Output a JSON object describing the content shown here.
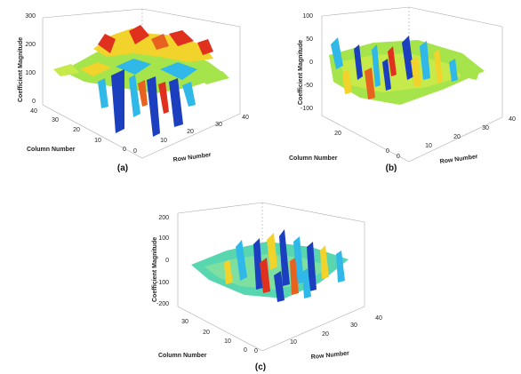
{
  "chart_data": [
    {
      "type": "surface3d",
      "caption": "(a)",
      "zlabel": "Coefficient  Magnitude",
      "xlabel": "Column Number",
      "ylabel": "Row Number",
      "z_ticks": [
        "300",
        "200",
        "100",
        "0"
      ],
      "x_ticks": [
        "40",
        "30",
        "20",
        "10",
        "0"
      ],
      "y_ticks": [
        "0",
        "10",
        "20",
        "30",
        "40"
      ],
      "zlim": [
        0,
        300
      ],
      "xlim": [
        0,
        40
      ],
      "ylim": [
        0,
        40
      ]
    },
    {
      "type": "surface3d",
      "caption": "(b)",
      "zlabel": "Coefficient Magnitude",
      "xlabel": "Column Number",
      "ylabel": "Row Number",
      "z_ticks": [
        "100",
        "50",
        "0",
        "-50",
        "-100"
      ],
      "x_ticks": [
        "20",
        "0"
      ],
      "y_ticks": [
        "0",
        "10",
        "20",
        "30",
        "40"
      ],
      "zlim": [
        -100,
        100
      ],
      "xlim": [
        0,
        40
      ],
      "ylim": [
        0,
        40
      ]
    },
    {
      "type": "surface3d",
      "caption": "(c)",
      "zlabel": "Coefficient Magnitude",
      "xlabel": "Column Number",
      "ylabel": "Row Number",
      "z_ticks": [
        "200",
        "100",
        "0",
        "-100",
        "-200"
      ],
      "x_ticks": [
        "30",
        "20",
        "10",
        "0"
      ],
      "y_ticks": [
        "0",
        "10",
        "20",
        "30",
        "40"
      ],
      "zlim": [
        -200,
        200
      ],
      "xlim": [
        0,
        40
      ],
      "ylim": [
        0,
        40
      ]
    }
  ],
  "colors": {
    "low": "#1c3fbf",
    "mid_low": "#2fb8e8",
    "mid": "#a6e44b",
    "mid_high": "#f2d32c",
    "high": "#e0301e",
    "axis": "#888888"
  }
}
